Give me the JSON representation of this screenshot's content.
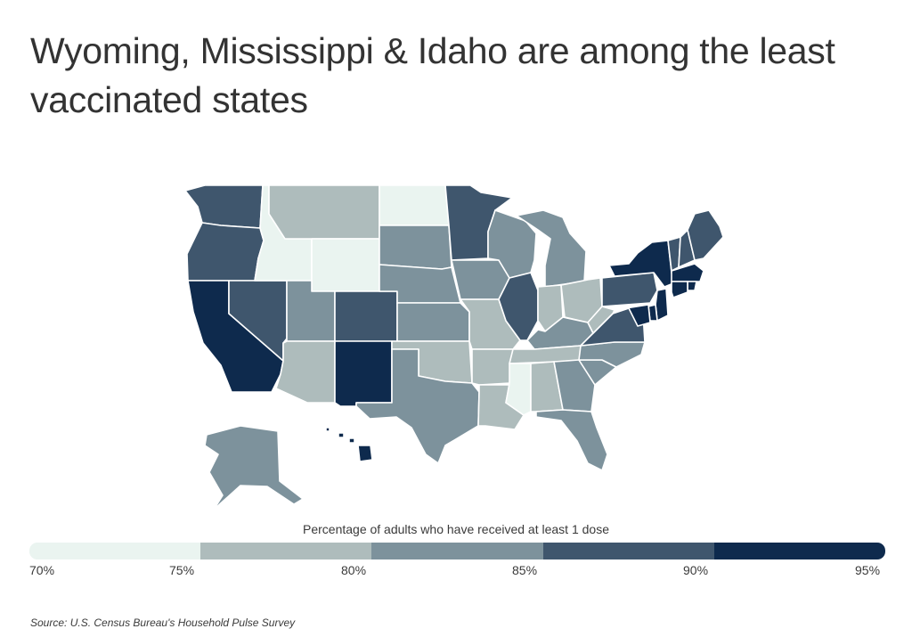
{
  "title": "Wyoming, Mississippi & Idaho are among the least vaccinated states",
  "legend": {
    "title": "Percentage of adults who have received at least 1 dose",
    "ticks": [
      "70%",
      "75%",
      "80%",
      "85%",
      "90%",
      "95%"
    ],
    "colors": [
      "#eaf4f0",
      "#aebcbc",
      "#7d929c",
      "#3f566d",
      "#0e2a4d"
    ]
  },
  "source": {
    "label": "Source:",
    "text": "U.S. Census Bureau's Household Pulse Survey"
  },
  "map_data": {
    "metric": "Percentage of adults who have received at least 1 dose",
    "bins": [
      "70%-75%",
      "75%-80%",
      "80%-85%",
      "85%-90%",
      "90%-95%"
    ],
    "states": {
      "WA": "85%-90%",
      "OR": "85%-90%",
      "CA": "90%-95%",
      "NV": "85%-90%",
      "ID": "70%-75%",
      "MT": "75%-80%",
      "WY": "70%-75%",
      "UT": "80%-85%",
      "AZ": "75%-80%",
      "CO": "85%-90%",
      "NM": "90%-95%",
      "ND": "70%-75%",
      "SD": "80%-85%",
      "NE": "80%-85%",
      "KS": "80%-85%",
      "OK": "75%-80%",
      "TX": "80%-85%",
      "MN": "85%-90%",
      "IA": "80%-85%",
      "MO": "75%-80%",
      "AR": "75%-80%",
      "LA": "75%-80%",
      "WI": "80%-85%",
      "IL": "85%-90%",
      "MI": "80%-85%",
      "IN": "75%-80%",
      "OH": "75%-80%",
      "KY": "80%-85%",
      "TN": "75%-80%",
      "MS": "70%-75%",
      "AL": "75%-80%",
      "GA": "80%-85%",
      "FL": "80%-85%",
      "SC": "80%-85%",
      "NC": "80%-85%",
      "VA": "85%-90%",
      "WV": "75%-80%",
      "PA": "85%-90%",
      "NY": "90%-95%",
      "VT": "85%-90%",
      "NH": "85%-90%",
      "ME": "85%-90%",
      "MA": "90%-95%",
      "RI": "90%-95%",
      "CT": "90%-95%",
      "NJ": "90%-95%",
      "DE": "90%-95%",
      "MD": "90%-95%",
      "AK": "80%-85%",
      "HI": "90%-95%"
    }
  }
}
